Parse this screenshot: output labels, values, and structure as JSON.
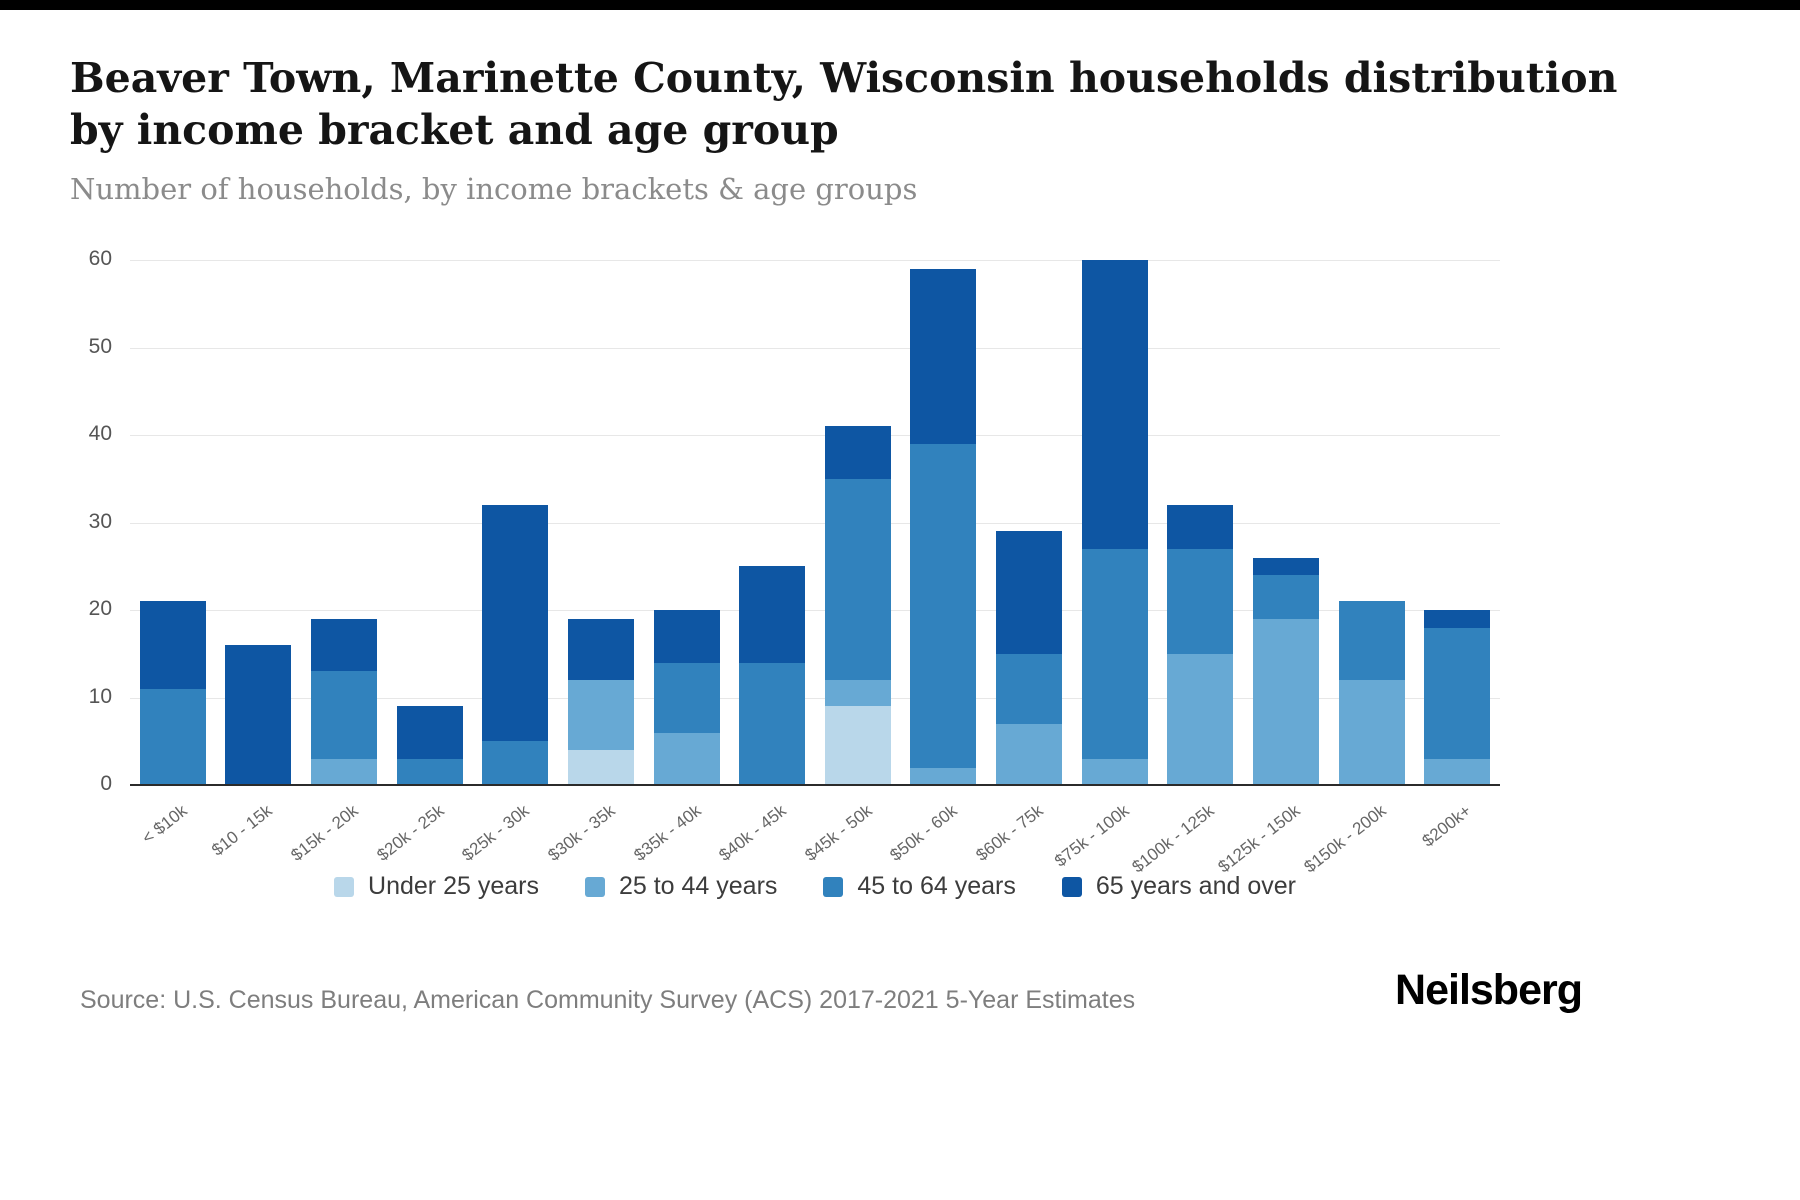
{
  "page": {
    "title_line1": "Beaver Town, Marinette County, Wisconsin households distribution",
    "title_line2": "by income bracket and age group",
    "subtitle": "Number of households, by income brackets & age groups",
    "source": "Source: U.S. Census Bureau, American Community Survey (ACS) 2017-2021 5-Year Estimates",
    "brand": "Neilsberg"
  },
  "chart_data": {
    "type": "bar",
    "stacked": true,
    "title": "Beaver Town, Marinette County, Wisconsin households distribution by income bracket and age group",
    "subtitle": "Number of households, by income brackets & age groups",
    "xlabel": "",
    "ylabel": "",
    "ylim": [
      0,
      60
    ],
    "yticks": [
      0,
      10,
      20,
      30,
      40,
      50,
      60
    ],
    "grid": true,
    "legend_position": "bottom",
    "categories": [
      "< $10k",
      "$10 - 15k",
      "$15k - 20k",
      "$20k - 25k",
      "$25k - 30k",
      "$30k - 35k",
      "$35k - 40k",
      "$40k - 45k",
      "$45k - 50k",
      "$50k - 60k",
      "$60k - 75k",
      "$75k - 100k",
      "$100k - 125k",
      "$125k - 150k",
      "$150k - 200k",
      "$200k+"
    ],
    "series": [
      {
        "name": "Under 25 years",
        "color": "#b9d7ea",
        "values": [
          0,
          0,
          0,
          0,
          0,
          4,
          0,
          0,
          9,
          0,
          0,
          0,
          0,
          0,
          0,
          0
        ]
      },
      {
        "name": "25 to 44 years",
        "color": "#67a9d4",
        "values": [
          0,
          0,
          3,
          0,
          0,
          8,
          6,
          0,
          3,
          2,
          7,
          3,
          15,
          19,
          12,
          3
        ]
      },
      {
        "name": "45 to 64 years",
        "color": "#3182bd",
        "values": [
          11,
          0,
          10,
          3,
          5,
          0,
          8,
          14,
          23,
          37,
          8,
          24,
          12,
          5,
          9,
          15
        ]
      },
      {
        "name": "65 years and over",
        "color": "#0e56a3",
        "values": [
          10,
          16,
          6,
          6,
          27,
          7,
          6,
          11,
          6,
          20,
          14,
          33,
          5,
          2,
          0,
          2
        ]
      }
    ]
  }
}
